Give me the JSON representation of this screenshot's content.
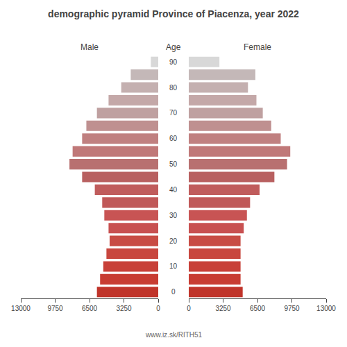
{
  "chart_data": {
    "type": "bar",
    "orientation": "horizontal",
    "title": "demographic pyramid Province of Piacenza, year 2022",
    "ylabel": "Age",
    "categories": [
      "0",
      null,
      "10",
      null,
      "20",
      null,
      "30",
      null,
      "40",
      null,
      "50",
      null,
      "60",
      null,
      "70",
      null,
      "80",
      null,
      "90"
    ],
    "series": [
      {
        "name": "Male",
        "colors": [
          "#c0342a",
          "#c83c32",
          "#c84038",
          "#c8463e",
          "#c84c44",
          "#c85050",
          "#c85454",
          "#c05858",
          "#c05c5c",
          "#b86060",
          "#b87070",
          "#c07878",
          "#c08080",
          "#bf9090",
          "#bfa0a0",
          "#c4a8a8",
          "#c4b0b0",
          "#c4b8b8",
          "#d8d8d8"
        ],
        "values": [
          5800,
          5500,
          5200,
          4900,
          4600,
          4700,
          5100,
          5300,
          6000,
          7200,
          8400,
          8100,
          7200,
          6800,
          5800,
          4700,
          3500,
          2600,
          700
        ]
      },
      {
        "name": "Female",
        "colors": [
          "#c0342a",
          "#c83c32",
          "#c84038",
          "#c8463e",
          "#c84c44",
          "#c85050",
          "#c85454",
          "#c05858",
          "#c05c5c",
          "#b86060",
          "#b87070",
          "#c07878",
          "#c08080",
          "#bf9090",
          "#bfa0a0",
          "#c4a8a8",
          "#c4b0b0",
          "#c4b8b8",
          "#d8d8d8"
        ],
        "values": [
          5100,
          4900,
          4900,
          4900,
          4900,
          5200,
          5500,
          5800,
          6700,
          8100,
          9300,
          9600,
          8700,
          7800,
          7000,
          6400,
          5600,
          6300,
          2900
        ]
      }
    ],
    "xlim": [
      0,
      13000
    ],
    "xticks": [
      0,
      3250,
      6500,
      9750,
      13000
    ],
    "grid": false,
    "annotations": [
      {
        "text": "www.iz.sk/RITH51"
      }
    ]
  }
}
